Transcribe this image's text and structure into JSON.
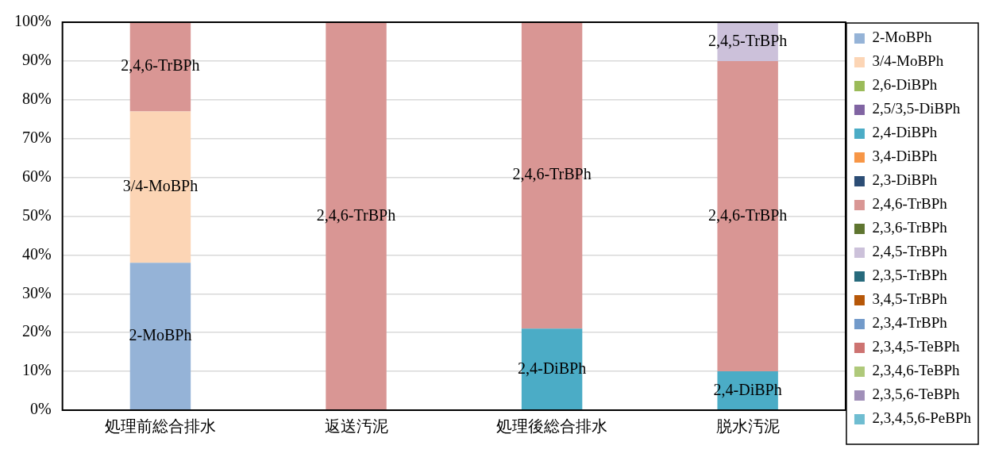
{
  "chart_data": {
    "type": "bar",
    "stacked": true,
    "categories": [
      "処理前総合排水",
      "返送汚泥",
      "処理後総合排水",
      "脱水汚泥"
    ],
    "ylim": [
      0,
      100
    ],
    "yticks": [
      {
        "value": 0,
        "label": "0%"
      },
      {
        "value": 10,
        "label": "10%"
      },
      {
        "value": 20,
        "label": "20%"
      },
      {
        "value": 30,
        "label": "30%"
      },
      {
        "value": 40,
        "label": "40%"
      },
      {
        "value": 50,
        "label": "50%"
      },
      {
        "value": 60,
        "label": "60%"
      },
      {
        "value": 70,
        "label": "70%"
      },
      {
        "value": 80,
        "label": "80%"
      },
      {
        "value": 90,
        "label": "90%"
      },
      {
        "value": 100,
        "label": "100%"
      }
    ],
    "grid": "y",
    "legend": "right",
    "series": [
      {
        "name": "2-MoBPh",
        "color": "#95b3d7",
        "values": [
          38,
          0,
          0,
          0
        ]
      },
      {
        "name": "3/4-MoBPh",
        "color": "#fcd5b5",
        "values": [
          39,
          0,
          0,
          0
        ]
      },
      {
        "name": "2,6-DiBPh",
        "color": "#9bbb59",
        "values": [
          0,
          0,
          0,
          0
        ]
      },
      {
        "name": "2,5/3,5-DiBPh",
        "color": "#8064a2",
        "values": [
          0,
          0,
          0,
          0
        ]
      },
      {
        "name": "2,4-DiBPh",
        "color": "#4bacc6",
        "values": [
          0,
          0,
          21,
          10
        ]
      },
      {
        "name": "3,4-DiBPh",
        "color": "#f79646",
        "values": [
          0,
          0,
          0,
          0
        ]
      },
      {
        "name": "2,3-DiBPh",
        "color": "#2c4d75",
        "values": [
          0,
          0,
          0,
          0
        ]
      },
      {
        "name": "2,4,6-TrBPh",
        "color": "#d99694",
        "values": [
          23,
          100,
          79,
          80
        ]
      },
      {
        "name": "2,3,6-TrBPh",
        "color": "#5f7530",
        "values": [
          0,
          0,
          0,
          0
        ]
      },
      {
        "name": "2,4,5-TrBPh",
        "color": "#ccc1da",
        "values": [
          0,
          0,
          0,
          10
        ]
      },
      {
        "name": "2,3,5-TrBPh",
        "color": "#276a7c",
        "values": [
          0,
          0,
          0,
          0
        ]
      },
      {
        "name": "3,4,5-TrBPh",
        "color": "#b65708",
        "values": [
          0,
          0,
          0,
          0
        ]
      },
      {
        "name": "2,3,4-TrBPh",
        "color": "#729aca",
        "values": [
          0,
          0,
          0,
          0
        ]
      },
      {
        "name": "2,3,4,5-TeBPh",
        "color": "#cd7371",
        "values": [
          0,
          0,
          0,
          0
        ]
      },
      {
        "name": "2,3,4,6-TeBPh",
        "color": "#afc97a",
        "values": [
          0,
          0,
          0,
          0
        ]
      },
      {
        "name": "2,3,5,6-TeBPh",
        "color": "#a08fb8",
        "values": [
          0,
          0,
          0,
          0
        ]
      },
      {
        "name": "2,3,4,5,6-PeBPh",
        "color": "#6fbdd1",
        "values": [
          0,
          0,
          0,
          0
        ]
      }
    ],
    "annotations": [
      "2-MoBPh",
      "3/4-MoBPh",
      "2,4,6-TrBPh",
      "2,4,6-TrBPh",
      "2,4-DiBPh",
      "2,4,6-TrBPh",
      "2,4-DiBPh",
      "2,4,6-TrBPh",
      "2,4,5-TrBPh"
    ]
  }
}
